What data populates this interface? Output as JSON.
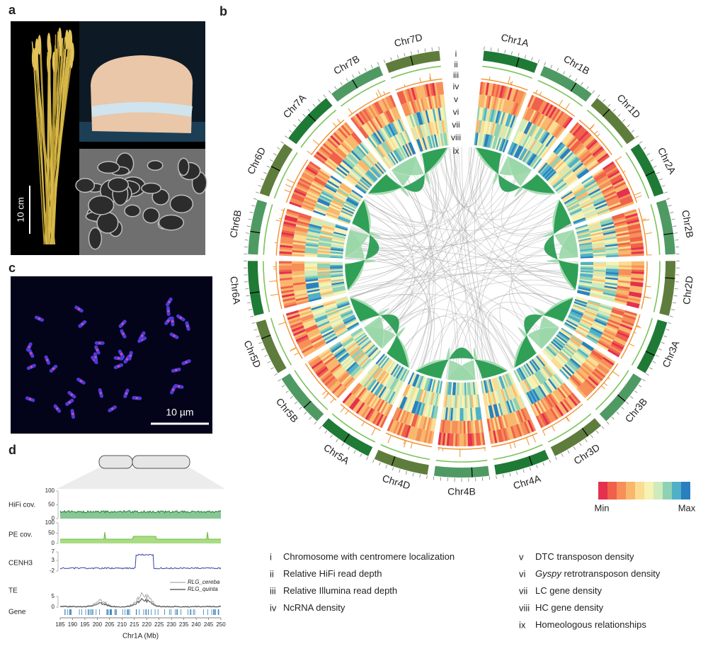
{
  "panel_labels": [
    "a",
    "b",
    "c",
    "d"
  ],
  "panel_a": {
    "scale_bar": "10 cm"
  },
  "panel_c": {
    "scale_bar": "10 µm"
  },
  "panel_b": {
    "chromosomes": [
      "Chr1A",
      "Chr1B",
      "Chr1D",
      "Chr2A",
      "Chr2B",
      "Chr2D",
      "Chr3A",
      "Chr3B",
      "Chr3D",
      "Chr4A",
      "Chr4B",
      "Chr4D",
      "Chr5A",
      "Chr5B",
      "Chr5D",
      "Chr6A",
      "Chr6B",
      "Chr6D",
      "Chr7A",
      "Chr7B",
      "Chr7D"
    ],
    "ring_labels": [
      "i",
      "ii",
      "iii",
      "iv",
      "v",
      "vi",
      "vii",
      "viii",
      "ix"
    ],
    "color_scale": {
      "colors": [
        "#e5304e",
        "#f0604a",
        "#f68f58",
        "#f9b76c",
        "#fbdc93",
        "#f5f2b4",
        "#cfeabb",
        "#8fd1b5",
        "#4fb0c6",
        "#2a7fc0"
      ],
      "min_label": "Min",
      "max_label": "Max"
    },
    "legend": [
      {
        "numeral": "i",
        "text": "Chromosome with centromere localization"
      },
      {
        "numeral": "ii",
        "text": "Relative HiFi read depth"
      },
      {
        "numeral": "iii",
        "text": "Relative Illumina read depth"
      },
      {
        "numeral": "iv",
        "text": "NcRNA density"
      },
      {
        "numeral": "v",
        "text": "DTC transposon density"
      },
      {
        "numeral": "vi",
        "term": "Gyspy",
        "text": "retrotransposon density"
      },
      {
        "numeral": "vii",
        "text": "LC gene density"
      },
      {
        "numeral": "viii",
        "text": "HC gene density"
      },
      {
        "numeral": "ix",
        "text": "Homeologous relationships"
      }
    ]
  },
  "panel_d": {
    "tracks": [
      {
        "label": "HiFi cov.",
        "yticks": [
          0,
          50,
          100
        ]
      },
      {
        "label": "PE cov.",
        "yticks": [
          0,
          50,
          100
        ]
      },
      {
        "label": "CENH3",
        "yticks": [
          -2,
          3,
          7
        ]
      },
      {
        "label": "TE",
        "yticks": [
          0,
          5
        ]
      },
      {
        "label": "Gene"
      }
    ],
    "te_legend": [
      "RLG_cereba",
      "RLG_quinta"
    ],
    "xticks": [
      185,
      190,
      195,
      200,
      205,
      210,
      215,
      220,
      225,
      230,
      235,
      240,
      245,
      250
    ],
    "xlabel": "Chr1A (Mb)"
  }
}
